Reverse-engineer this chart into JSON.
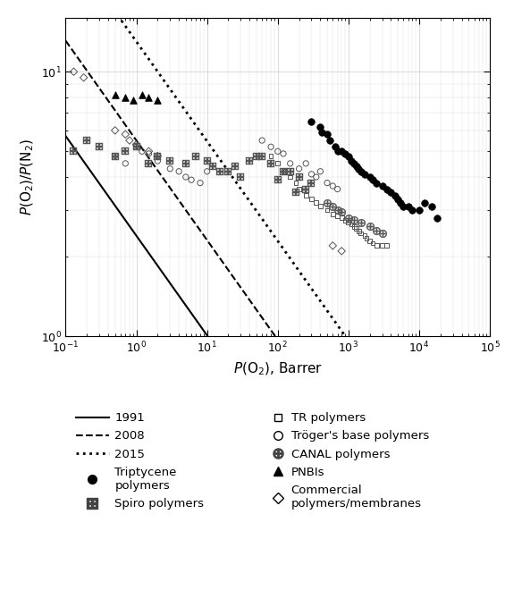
{
  "xlim": [
    0.1,
    100000.0
  ],
  "ylim": [
    1.0,
    16
  ],
  "xlabel": "$P$(O$_2$), Barrer",
  "ylabel": "$P$(O$_2$)/$P$(N$_2$)",
  "line_n": -0.3768,
  "k1991": 2.4,
  "k2008": 5.5,
  "k2015": 13.0,
  "triptycene": [
    [
      300,
      6.5
    ],
    [
      400,
      6.2
    ],
    [
      420,
      5.9
    ],
    [
      500,
      5.8
    ],
    [
      550,
      5.5
    ],
    [
      650,
      5.2
    ],
    [
      700,
      5.0
    ],
    [
      800,
      5.0
    ],
    [
      900,
      4.9
    ],
    [
      1000,
      4.8
    ],
    [
      1100,
      4.6
    ],
    [
      1200,
      4.5
    ],
    [
      1300,
      4.4
    ],
    [
      1400,
      4.3
    ],
    [
      1500,
      4.2
    ],
    [
      1700,
      4.1
    ],
    [
      2000,
      4.0
    ],
    [
      2200,
      3.9
    ],
    [
      2500,
      3.8
    ],
    [
      3000,
      3.7
    ],
    [
      3500,
      3.6
    ],
    [
      4000,
      3.5
    ],
    [
      4500,
      3.4
    ],
    [
      5000,
      3.3
    ],
    [
      5500,
      3.2
    ],
    [
      6000,
      3.1
    ],
    [
      7000,
      3.1
    ],
    [
      8000,
      3.0
    ],
    [
      10000,
      3.0
    ],
    [
      12000,
      3.2
    ],
    [
      15000,
      3.1
    ],
    [
      18000,
      2.8
    ]
  ],
  "spiro": [
    [
      0.13,
      5.0
    ],
    [
      0.2,
      5.5
    ],
    [
      0.3,
      5.2
    ],
    [
      0.5,
      4.8
    ],
    [
      0.7,
      5.0
    ],
    [
      1.0,
      5.2
    ],
    [
      1.5,
      4.5
    ],
    [
      2.0,
      4.8
    ],
    [
      3.0,
      4.6
    ],
    [
      5.0,
      4.5
    ],
    [
      7.0,
      4.8
    ],
    [
      10.0,
      4.6
    ],
    [
      12.0,
      4.4
    ],
    [
      15.0,
      4.2
    ],
    [
      20.0,
      4.2
    ],
    [
      25.0,
      4.4
    ],
    [
      30.0,
      4.0
    ],
    [
      40.0,
      4.6
    ],
    [
      50.0,
      4.8
    ],
    [
      60.0,
      4.8
    ],
    [
      80.0,
      4.5
    ],
    [
      100,
      3.9
    ],
    [
      120,
      4.2
    ],
    [
      150,
      4.2
    ],
    [
      180,
      3.5
    ],
    [
      200,
      4.0
    ],
    [
      250,
      3.6
    ],
    [
      300,
      3.8
    ]
  ],
  "troger": [
    [
      0.5,
      4.8
    ],
    [
      0.7,
      4.5
    ],
    [
      1.0,
      5.2
    ],
    [
      1.2,
      5.0
    ],
    [
      1.5,
      4.9
    ],
    [
      2.0,
      4.6
    ],
    [
      3.0,
      4.3
    ],
    [
      4.0,
      4.2
    ],
    [
      5.0,
      4.0
    ],
    [
      6.0,
      3.9
    ],
    [
      8.0,
      3.8
    ],
    [
      10.0,
      4.2
    ],
    [
      60,
      5.5
    ],
    [
      80,
      5.2
    ],
    [
      100,
      5.0
    ],
    [
      120,
      4.9
    ],
    [
      150,
      4.5
    ],
    [
      200,
      4.3
    ],
    [
      250,
      4.5
    ],
    [
      300,
      4.1
    ],
    [
      350,
      4.0
    ],
    [
      400,
      4.2
    ],
    [
      500,
      3.8
    ],
    [
      600,
      3.7
    ],
    [
      700,
      3.6
    ]
  ],
  "TR_polymers": [
    [
      80,
      4.8
    ],
    [
      100,
      4.5
    ],
    [
      120,
      4.2
    ],
    [
      150,
      4.0
    ],
    [
      180,
      3.8
    ],
    [
      200,
      3.6
    ],
    [
      250,
      3.4
    ],
    [
      300,
      3.3
    ],
    [
      350,
      3.2
    ],
    [
      400,
      3.1
    ],
    [
      500,
      3.0
    ],
    [
      600,
      2.9
    ],
    [
      700,
      2.85
    ],
    [
      800,
      2.8
    ],
    [
      900,
      2.75
    ],
    [
      1000,
      2.7
    ],
    [
      1100,
      2.65
    ],
    [
      1200,
      2.6
    ],
    [
      1300,
      2.55
    ],
    [
      1400,
      2.5
    ],
    [
      1500,
      2.45
    ],
    [
      1700,
      2.4
    ],
    [
      1800,
      2.35
    ],
    [
      2000,
      2.3
    ],
    [
      2200,
      2.25
    ],
    [
      2500,
      2.2
    ],
    [
      3000,
      2.2
    ],
    [
      3500,
      2.2
    ]
  ],
  "CANAL": [
    [
      500,
      3.2
    ],
    [
      600,
      3.1
    ],
    [
      700,
      3.0
    ],
    [
      800,
      2.95
    ],
    [
      1000,
      2.8
    ],
    [
      1200,
      2.75
    ],
    [
      1500,
      2.7
    ],
    [
      2000,
      2.6
    ],
    [
      2500,
      2.5
    ],
    [
      3000,
      2.45
    ]
  ],
  "PNBIs": [
    [
      0.5,
      8.2
    ],
    [
      0.7,
      8.0
    ],
    [
      0.9,
      7.8
    ],
    [
      1.2,
      8.2
    ],
    [
      1.5,
      8.0
    ],
    [
      2.0,
      7.8
    ]
  ],
  "commercial": [
    [
      0.13,
      10.0
    ],
    [
      0.18,
      9.5
    ],
    [
      0.5,
      6.0
    ],
    [
      0.7,
      5.8
    ],
    [
      0.8,
      5.5
    ],
    [
      1.0,
      5.3
    ],
    [
      1.5,
      5.0
    ],
    [
      2.0,
      4.8
    ],
    [
      600,
      2.2
    ],
    [
      800,
      2.1
    ]
  ],
  "legend_left": [
    {
      "type": "line",
      "ls": "-",
      "lw": 1.5,
      "color": "black",
      "label": "1991"
    },
    {
      "type": "line",
      "ls": "--",
      "lw": 1.5,
      "color": "black",
      "label": "2008"
    },
    {
      "type": "line",
      "ls": ":",
      "lw": 2.0,
      "color": "black",
      "label": "2015"
    },
    {
      "type": "marker",
      "marker": "o",
      "mfc": "black",
      "mec": "black",
      "ms": 7,
      "label": "Triptycene\npolymers"
    },
    {
      "type": "marker",
      "marker": "boxplus",
      "mfc": "none",
      "mec": "black",
      "ms": 7,
      "label": "Spiro polymers"
    }
  ],
  "legend_right": [
    {
      "type": "marker",
      "marker": "s",
      "mfc": "none",
      "mec": "black",
      "ms": 6,
      "label": "TR polymers"
    },
    {
      "type": "marker",
      "marker": "o",
      "mfc": "none",
      "mec": "black",
      "ms": 7,
      "label": "Tröger's base polymers"
    },
    {
      "type": "marker",
      "marker": "oplus",
      "mfc": "none",
      "mec": "black",
      "ms": 7,
      "label": "CANAL polymers"
    },
    {
      "type": "marker",
      "marker": "^",
      "mfc": "black",
      "mec": "black",
      "ms": 7,
      "label": "PNBIs"
    },
    {
      "type": "marker",
      "marker": "diamond",
      "mfc": "none",
      "mec": "black",
      "ms": 7,
      "label": "Commercial\npolymers/membranes"
    }
  ]
}
